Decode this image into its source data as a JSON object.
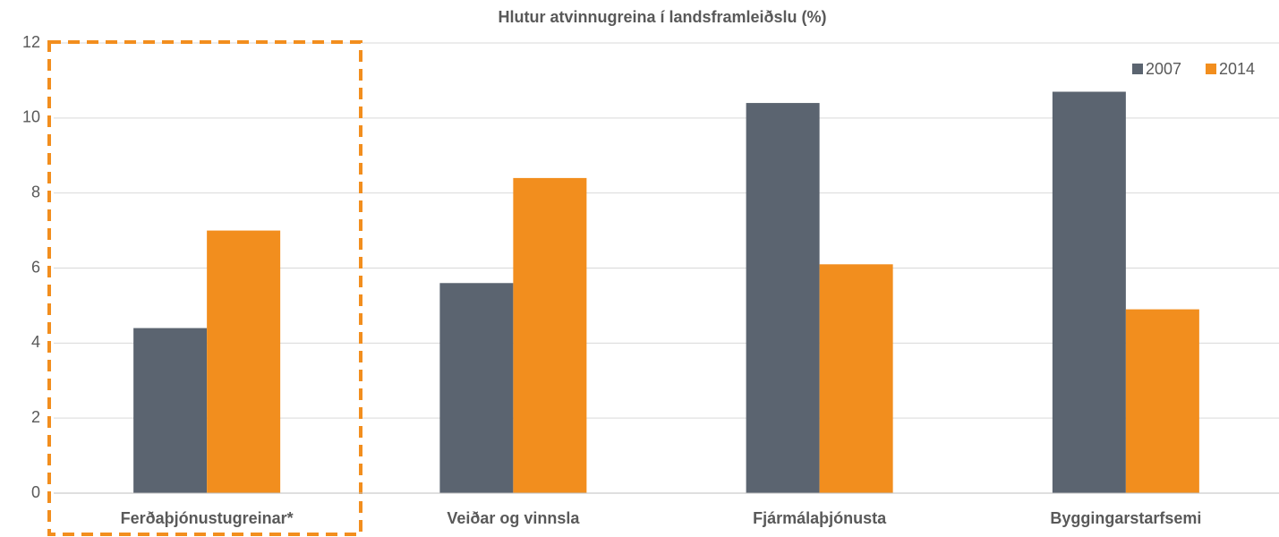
{
  "chart_data": {
    "type": "bar",
    "title": "Hlutur atvinnugreina í landsframleiðslu (%)",
    "categories": [
      "Ferðaþjónustugreinar*",
      "Veiðar og vinnsla",
      "Fjármálaþjónusta",
      "Byggingarstarfsemi"
    ],
    "series": [
      {
        "name": "2007",
        "color": "#5b6470",
        "values": [
          4.4,
          5.6,
          10.4,
          10.7
        ]
      },
      {
        "name": "2014",
        "color": "#f28e1e",
        "values": [
          7.0,
          8.4,
          6.1,
          4.9
        ]
      }
    ],
    "ylim": [
      0,
      12
    ],
    "yticks": [
      0,
      2,
      4,
      6,
      8,
      10,
      12
    ],
    "grid": true,
    "legend": "top-right"
  }
}
